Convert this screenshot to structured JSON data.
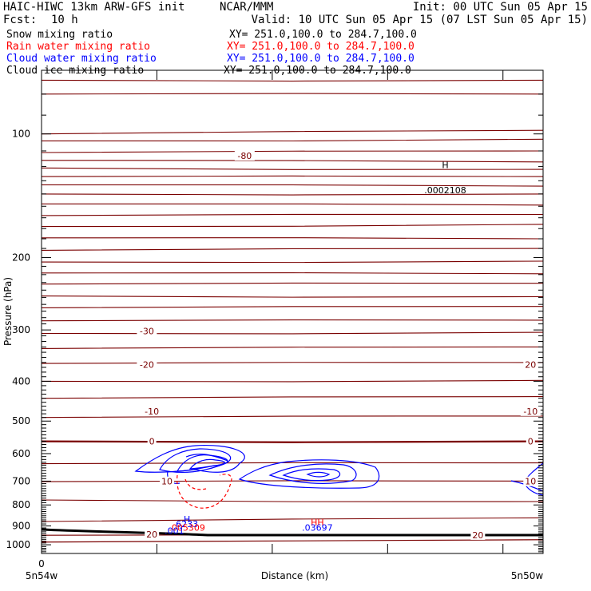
{
  "header": {
    "title_left": "HAIC-HIWC 13km ARW-GFS init",
    "title_center": "NCAR/MMM",
    "init": "Init: 00 UTC Sun 05 Apr 15",
    "fcst_label": "Fcst:",
    "fcst_value": "10 h",
    "valid": "Valid: 10 UTC Sun 05 Apr 15 (07 LST Sun 05 Apr 15)"
  },
  "legend": [
    {
      "label": "Snow mixing ratio",
      "xy": "XY= 251.0,100.0 to 284.7,100.0",
      "color": "#000000"
    },
    {
      "label": "Rain water mixing ratio",
      "xy": "XY= 251.0,100.0 to 284.7,100.0",
      "color": "#ff0000"
    },
    {
      "label": "Cloud water mixing ratio",
      "xy": "XY= 251.0,100.0 to 284.7,100.0",
      "color": "#0000ff"
    },
    {
      "label": "Cloud ice mixing ratio",
      "xy": "XY= 251.0,100.0 to 284.7,100.0",
      "color": "#000000"
    }
  ],
  "colors": {
    "temperature_contour": "#7a0000",
    "cloud_water": "#0000ff",
    "rain_water": "#ff0000",
    "terrain": "#000000"
  },
  "chart_data": {
    "type": "line",
    "ylabel": "Pressure (hPa)",
    "xlabel": "Distance (km)",
    "y_scale": "log",
    "ylim": [
      1050,
      70
    ],
    "y_ticks": [
      100,
      200,
      300,
      400,
      500,
      600,
      700,
      800,
      900,
      1000
    ],
    "x_tick_labels": [
      "0"
    ],
    "x_endpoint_labels": [
      "5n54w",
      "5n50w"
    ],
    "temperature_contour_labels": [
      {
        "text": "-80",
        "x_frac": 0.405,
        "p": 113
      },
      {
        "text": "-30",
        "x_frac": 0.21,
        "p": 302
      },
      {
        "text": "-20",
        "x_frac": 0.21,
        "p": 364
      },
      {
        "text": "20",
        "x_frac": 0.975,
        "p": 364
      },
      {
        "text": "-10",
        "x_frac": 0.22,
        "p": 473
      },
      {
        "text": "-10",
        "x_frac": 0.975,
        "p": 473
      },
      {
        "text": "0",
        "x_frac": 0.22,
        "p": 560
      },
      {
        "text": "0",
        "x_frac": 0.975,
        "p": 560
      },
      {
        "text": "10",
        "x_frac": 0.25,
        "p": 701
      },
      {
        "text": "10",
        "x_frac": 0.975,
        "p": 701
      },
      {
        "text": "20",
        "x_frac": 0.22,
        "p": 943
      },
      {
        "text": "20",
        "x_frac": 0.87,
        "p": 947
      }
    ],
    "extrema": [
      {
        "text": "H",
        "x_frac": 0.805,
        "p": 119,
        "color": "#000000"
      },
      {
        "text": ".0002108",
        "x_frac": 0.805,
        "p": 137,
        "color": "#000000"
      },
      {
        "text": "H",
        "x_frac": 0.29,
        "p": 866,
        "color": "#0000ff"
      },
      {
        "text": "6233",
        "x_frac": 0.29,
        "p": 890,
        "color": "#0000ff"
      },
      {
        "text": ".005309",
        "x_frac": 0.29,
        "p": 908,
        "color": "#ff0000"
      },
      {
        "text": ".001",
        "x_frac": 0.265,
        "p": 924,
        "color": "#0000ff"
      },
      {
        "text": "HH",
        "x_frac": 0.55,
        "p": 882,
        "color": "#ff0000"
      },
      {
        "text": ".03697",
        "x_frac": 0.55,
        "p": 907,
        "color": "#0000ff"
      }
    ]
  }
}
